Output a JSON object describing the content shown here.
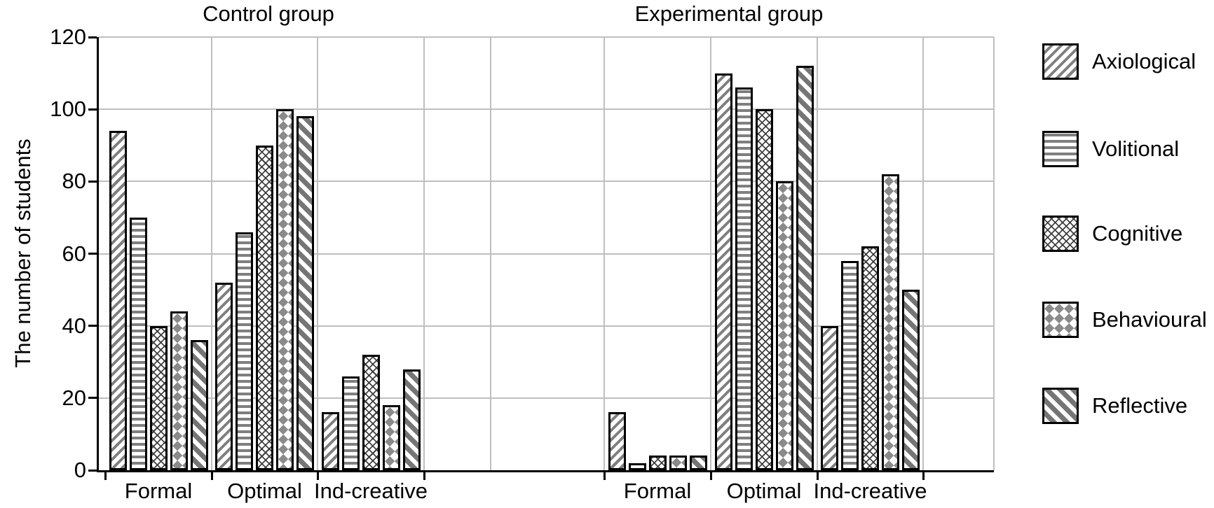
{
  "figure": {
    "ylabel": "The number of students",
    "panel_titles": [
      "Control group",
      "Experimental group"
    ]
  },
  "chart_data": {
    "type": "bar",
    "ylabel": "The number of students",
    "ylim": [
      0,
      120
    ],
    "y_ticks": [
      0,
      20,
      40,
      60,
      80,
      100,
      120
    ],
    "grid": true,
    "legend_position": "right",
    "legend": [
      "Axiological",
      "Volitional",
      "Cognitive",
      "Behavioural",
      "Reflective"
    ],
    "panels": [
      {
        "title": "Control group",
        "categories": [
          "Formal",
          "Optimal",
          "Ind-creative"
        ],
        "series": [
          {
            "name": "Axiological",
            "values": [
              94,
              52,
              16
            ]
          },
          {
            "name": "Volitional",
            "values": [
              70,
              66,
              26
            ]
          },
          {
            "name": "Cognitive",
            "values": [
              40,
              90,
              32
            ]
          },
          {
            "name": "Behavioural",
            "values": [
              44,
              100,
              18
            ]
          },
          {
            "name": "Reflective",
            "values": [
              36,
              98,
              28
            ]
          }
        ]
      },
      {
        "title": "Experimental group",
        "categories": [
          "Formal",
          "Optimal",
          "Ind-creative"
        ],
        "series": [
          {
            "name": "Axiological",
            "values": [
              16,
              110,
              40
            ]
          },
          {
            "name": "Volitional",
            "values": [
              2,
              106,
              58
            ]
          },
          {
            "name": "Cognitive",
            "values": [
              4,
              100,
              62
            ]
          },
          {
            "name": "Behavioural",
            "values": [
              4,
              80,
              82
            ]
          },
          {
            "name": "Reflective",
            "values": [
              4,
              112,
              50
            ]
          }
        ]
      }
    ],
    "series_patterns": {
      "Axiological": "diagonal-forward-hatch",
      "Volitional": "horizontal-hatch",
      "Cognitive": "crosshatch",
      "Behavioural": "diamond-grid",
      "Reflective": "diagonal-backward-hatch"
    }
  },
  "colors": {
    "background": "#ffffff",
    "text": "#000000",
    "bar_border": "#000000",
    "hatch_gray": "#7f7f7f",
    "gridline": "#bfbfbf"
  }
}
